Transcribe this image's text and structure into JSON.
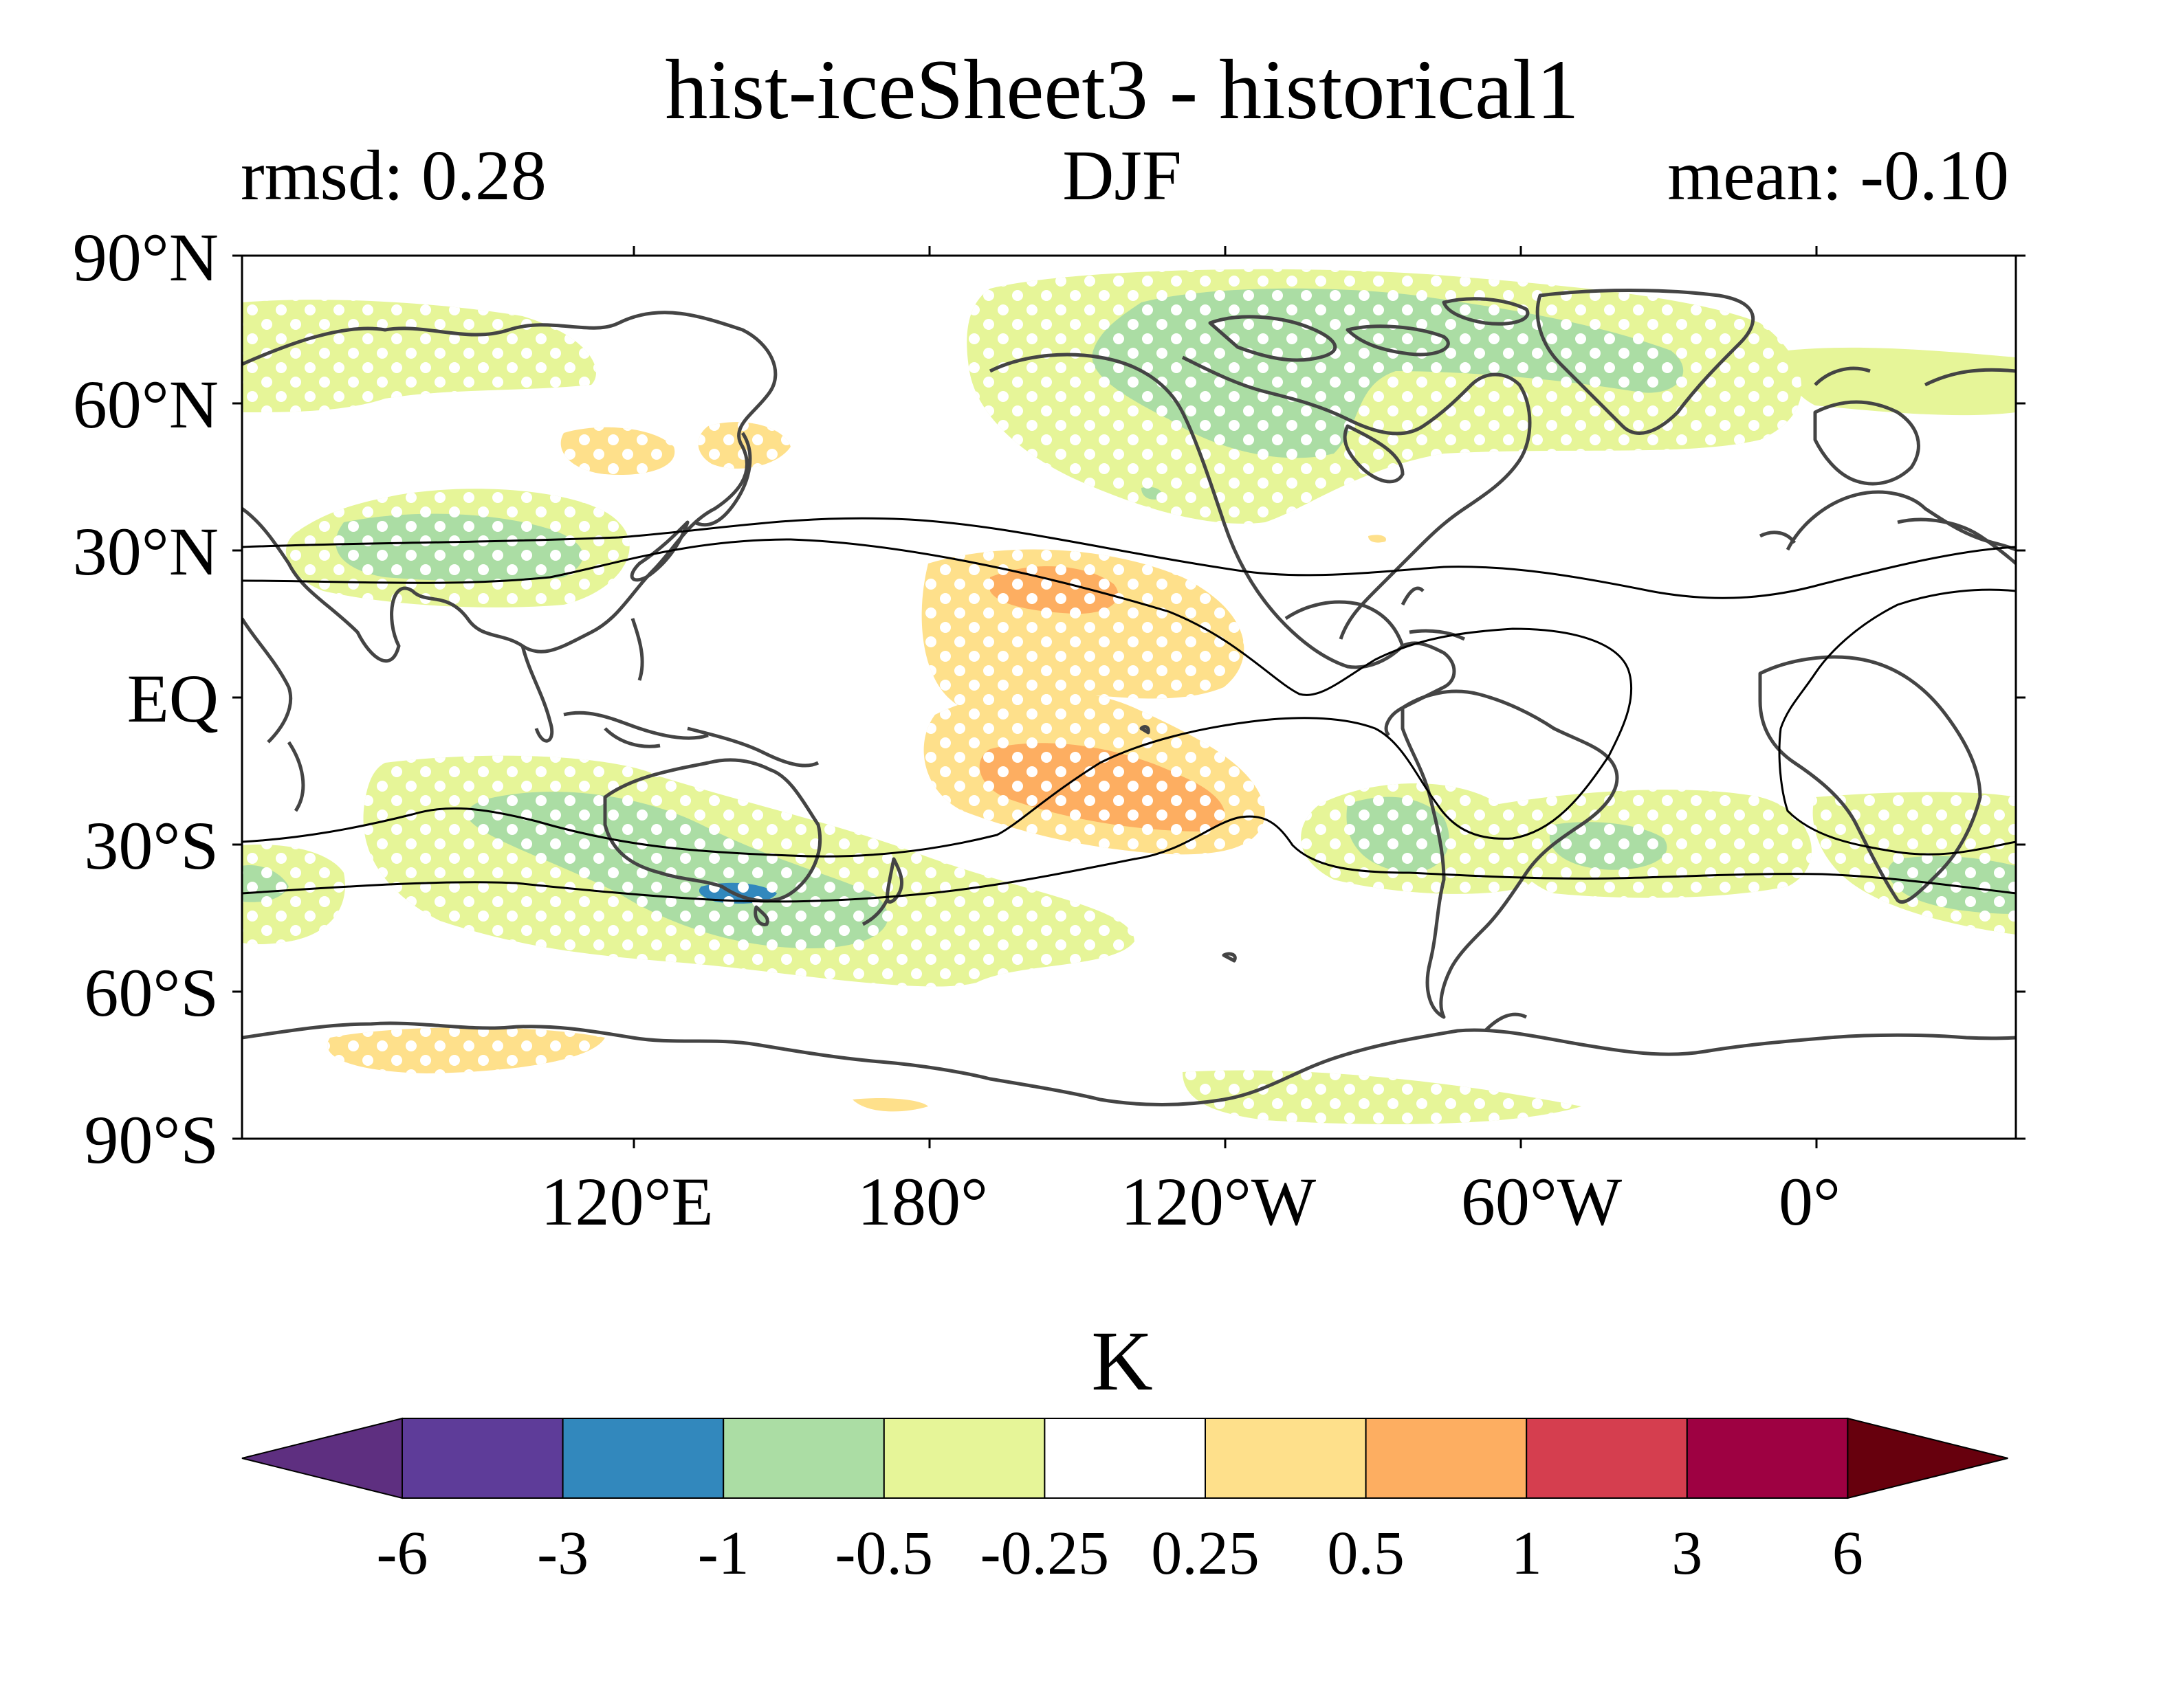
{
  "title": "hist-iceSheet3 - historical1",
  "stats": {
    "rmsd_label": "rmsd: 0.28",
    "season": "DJF",
    "mean_label": "mean: -0.10"
  },
  "map": {
    "lat_ticks": [
      "90°N",
      "60°N",
      "30°N",
      "EQ",
      "30°S",
      "60°S",
      "90°S"
    ],
    "lon_ticks": [
      "120°E",
      "180°",
      "120°W",
      "60°W",
      "0°"
    ],
    "central_longitude": 200,
    "stippling": "white dots mark robust regions"
  },
  "colorbar": {
    "unit": "K",
    "levels": [
      "-6",
      "-3",
      "-1",
      "-0.5",
      "-0.25",
      "0.25",
      "0.5",
      "1",
      "3",
      "6"
    ],
    "colors": [
      "#5e3c99",
      "#3288bd",
      "#abdda4",
      "#e6f598",
      "#ffffff",
      "#fee08b",
      "#fdae61",
      "#d53e4f",
      "#9e0142"
    ],
    "under_color": "#5e2f80",
    "over_color": "#67000d",
    "extend": "both"
  }
}
